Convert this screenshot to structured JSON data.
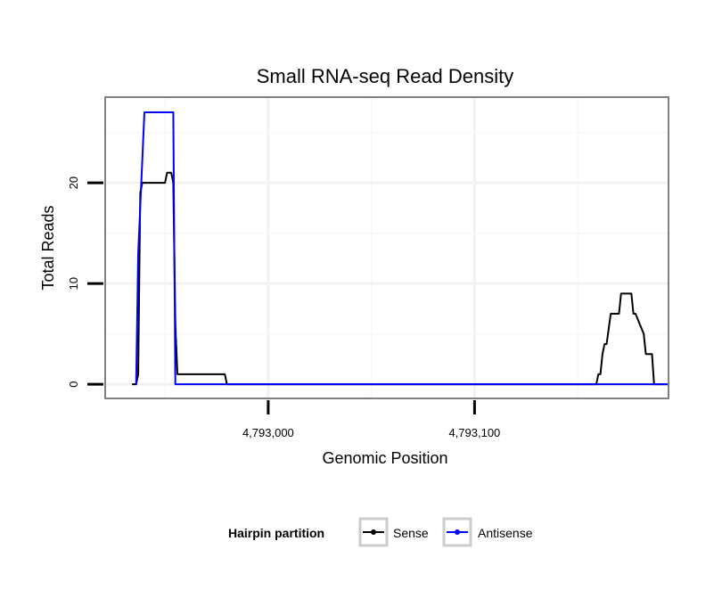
{
  "chart_data": {
    "type": "line",
    "title": "Small RNA-seq Read Density",
    "xlabel": "Genomic Position",
    "ylabel": "Total Reads",
    "xlim": [
      4792921,
      4793194
    ],
    "ylim": [
      -1.4,
      28.5
    ],
    "x_ticks": [
      4793000,
      4793100
    ],
    "x_tick_labels": [
      "4,793,000",
      "4,793,100"
    ],
    "y_ticks": [
      0,
      10,
      20
    ],
    "y_tick_labels": [
      "0",
      "10",
      "20"
    ],
    "grid": true,
    "legend": {
      "title": "Hairpin partition",
      "position": "bottom"
    },
    "series": [
      {
        "name": "Sense",
        "color": "#000000",
        "x": [
          4792934,
          4792936,
          4792937,
          4792938,
          4792939,
          4792940,
          4792950,
          4792951,
          4792953,
          4792954,
          4792955,
          4792956,
          4792957,
          4792958,
          4792959,
          4792960,
          4792979,
          4792980,
          4792981,
          4792982,
          4793159,
          4793160,
          4793161,
          4793162,
          4793163,
          4793164,
          4793166,
          4793167,
          4793168,
          4793169,
          4793170,
          4793171,
          4793173,
          4793174,
          4793175,
          4793176,
          4793177,
          4793178,
          4793182,
          4793183,
          4793184,
          4793185,
          4793186,
          4793187,
          4793188,
          4793189,
          4793190,
          4793191,
          4793192,
          4793193,
          4793194
        ],
        "y": [
          0,
          0,
          1,
          19,
          20,
          20,
          20,
          21,
          21,
          20,
          6,
          1,
          1,
          1,
          1,
          1,
          1,
          0,
          0,
          0,
          0,
          1,
          1,
          3,
          4,
          4,
          7,
          7,
          7,
          7,
          7,
          9,
          9,
          9,
          9,
          9,
          7,
          7,
          5,
          3,
          3,
          3,
          3,
          0,
          0,
          0,
          0,
          0,
          0,
          0,
          0
        ]
      },
      {
        "name": "Antisense",
        "color": "#0000ff",
        "x": [
          4792936,
          4792937,
          4792940,
          4792954,
          4792955,
          4793194
        ],
        "y": [
          0,
          13,
          27,
          27,
          0,
          0
        ]
      }
    ]
  }
}
